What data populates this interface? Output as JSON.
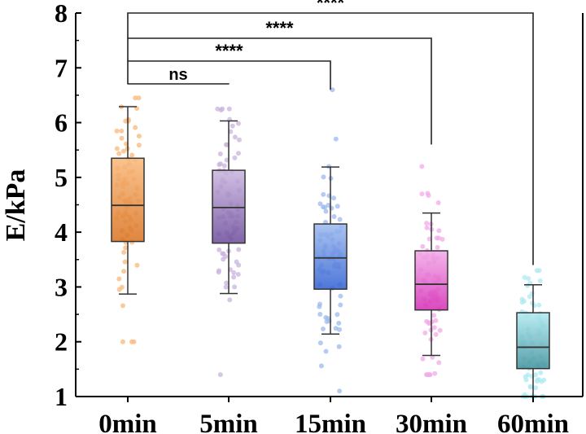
{
  "chart_data": {
    "type": "box",
    "ylabel": "E/kPa",
    "ylim": [
      1,
      8
    ],
    "yticks": [
      "1",
      "2",
      "3",
      "4",
      "5",
      "6",
      "7",
      "8"
    ],
    "categories": [
      "0min",
      "5min",
      "15min",
      "30min",
      "60min"
    ],
    "colors": {
      "0min": [
        "#f9b87a",
        "#d8711f"
      ],
      "5min": [
        "#c9b3de",
        "#6a4a99"
      ],
      "15min": [
        "#9cb9ee",
        "#2f5fd2"
      ],
      "30min": [
        "#f2a9e8",
        "#d42ab4"
      ],
      "60min": [
        "#aee9f1",
        "#3c8f9a"
      ]
    },
    "boxes": [
      {
        "category": "0min",
        "whisker_low": 2.87,
        "q1": 3.83,
        "median": 4.49,
        "q3": 5.35,
        "whisker_high": 6.29,
        "points_min": 2.0,
        "points_max": 6.45
      },
      {
        "category": "5min",
        "whisker_low": 2.88,
        "q1": 3.8,
        "median": 4.45,
        "q3": 5.13,
        "whisker_high": 6.03,
        "points_min": 1.4,
        "points_max": 6.25
      },
      {
        "category": "15min",
        "whisker_low": 2.14,
        "q1": 2.96,
        "median": 3.53,
        "q3": 4.15,
        "whisker_high": 5.19,
        "points_min": 1.1,
        "points_max": 6.6
      },
      {
        "category": "30min",
        "whisker_low": 1.75,
        "q1": 2.58,
        "median": 3.05,
        "q3": 3.66,
        "whisker_high": 4.35,
        "points_min": 1.4,
        "points_max": 5.2
      },
      {
        "category": "60min",
        "whisker_low": 1.0,
        "q1": 1.51,
        "median": 1.9,
        "q3": 2.53,
        "whisker_high": 3.04,
        "points_min": 1.0,
        "points_max": 3.3
      }
    ],
    "significance": [
      {
        "from": "0min",
        "to": "5min",
        "label": "ns"
      },
      {
        "from": "0min",
        "to": "15min",
        "label": "****"
      },
      {
        "from": "0min",
        "to": "30min",
        "label": "****"
      },
      {
        "from": "0min",
        "to": "60min",
        "label": "****"
      }
    ]
  }
}
